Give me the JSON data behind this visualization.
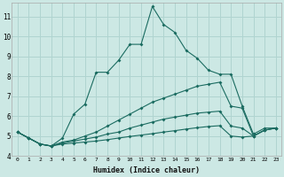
{
  "xlabel": "Humidex (Indice chaleur)",
  "background_color": "#cce8e4",
  "grid_color": "#b0d4d0",
  "line_color": "#1a6b60",
  "series": [
    {
      "x": [
        0,
        1,
        2,
        3,
        4,
        5,
        6,
        7,
        8,
        9,
        10,
        11,
        12,
        13,
        14,
        15,
        16,
        17,
        18,
        19,
        20,
        21,
        22,
        23
      ],
      "y": [
        5.2,
        4.9,
        4.6,
        4.5,
        4.9,
        6.1,
        6.6,
        8.2,
        8.2,
        8.8,
        9.6,
        9.6,
        11.5,
        10.6,
        10.2,
        9.3,
        8.9,
        8.3,
        8.1,
        8.1,
        6.5,
        5.1,
        5.4,
        5.4
      ]
    },
    {
      "x": [
        0,
        1,
        2,
        3,
        4,
        5,
        6,
        7,
        8,
        9,
        10,
        11,
        12,
        13,
        14,
        15,
        16,
        17,
        18,
        19,
        20,
        21,
        22,
        23
      ],
      "y": [
        5.2,
        4.9,
        4.6,
        4.5,
        4.7,
        4.8,
        5.0,
        5.2,
        5.5,
        5.8,
        6.1,
        6.4,
        6.7,
        6.9,
        7.1,
        7.3,
        7.5,
        7.6,
        7.7,
        6.5,
        6.4,
        5.0,
        5.3,
        5.4
      ]
    },
    {
      "x": [
        0,
        1,
        2,
        3,
        4,
        5,
        6,
        7,
        8,
        9,
        10,
        11,
        12,
        13,
        14,
        15,
        16,
        17,
        18,
        19,
        20,
        21,
        22,
        23
      ],
      "y": [
        5.2,
        4.9,
        4.6,
        4.5,
        4.65,
        4.75,
        4.85,
        4.95,
        5.1,
        5.2,
        5.4,
        5.55,
        5.7,
        5.85,
        5.95,
        6.05,
        6.15,
        6.2,
        6.25,
        5.5,
        5.4,
        5.0,
        5.3,
        5.4
      ]
    },
    {
      "x": [
        0,
        1,
        2,
        3,
        4,
        5,
        6,
        7,
        8,
        9,
        10,
        11,
        12,
        13,
        14,
        15,
        16,
        17,
        18,
        19,
        20,
        21,
        22,
        23
      ],
      "y": [
        5.2,
        4.9,
        4.6,
        4.5,
        4.6,
        4.65,
        4.7,
        4.75,
        4.82,
        4.9,
        4.98,
        5.05,
        5.12,
        5.2,
        5.27,
        5.35,
        5.42,
        5.48,
        5.52,
        5.0,
        4.95,
        5.0,
        5.3,
        5.4
      ]
    }
  ],
  "xlim": [
    -0.5,
    23.5
  ],
  "ylim": [
    4,
    11.7
  ],
  "yticks": [
    4,
    5,
    6,
    7,
    8,
    9,
    10,
    11
  ],
  "ytick_labels": [
    "4",
    "5",
    "6",
    "7",
    "8",
    "9",
    "10",
    "11"
  ],
  "xticks": [
    0,
    1,
    2,
    3,
    4,
    5,
    6,
    7,
    8,
    9,
    10,
    11,
    12,
    13,
    14,
    15,
    16,
    17,
    18,
    19,
    20,
    21,
    22,
    23
  ],
  "xtick_labels": [
    "0",
    "1",
    "2",
    "3",
    "4",
    "5",
    "6",
    "7",
    "8",
    "9",
    "10",
    "11",
    "12",
    "13",
    "14",
    "15",
    "16",
    "17",
    "18",
    "19",
    "20",
    "21",
    "22",
    "23"
  ]
}
